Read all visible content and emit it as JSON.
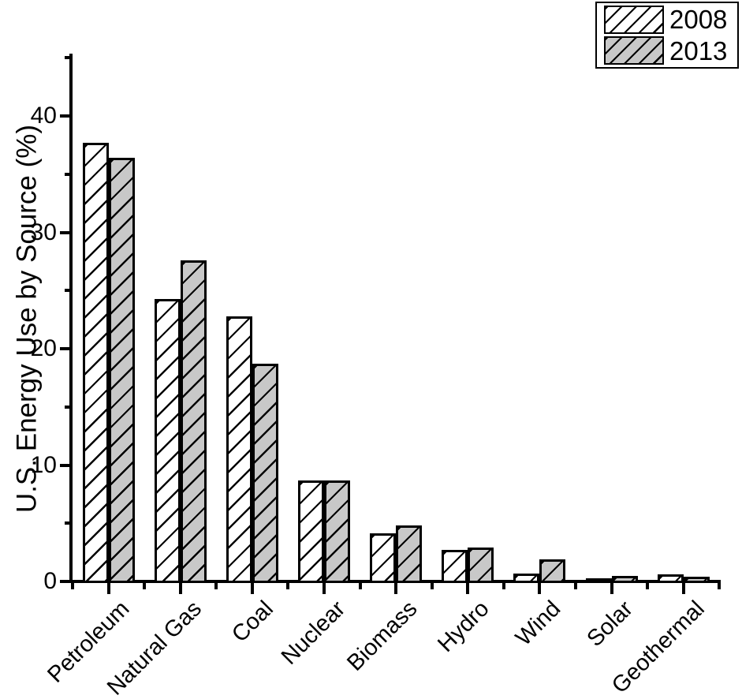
{
  "chart_data": {
    "type": "bar",
    "title": "",
    "xlabel": "",
    "ylabel": "U.S. Energy Use by Source (%)",
    "categories": [
      "Petroleum",
      "Natural Gas",
      "Coal",
      "Nuclear",
      "Biomass",
      "Hydro",
      "Wind",
      "Solar",
      "Geothermal"
    ],
    "series": [
      {
        "name": "2008",
        "fill": "#ffffff",
        "hatch": "diagonal-forward",
        "values": [
          37.5,
          24.1,
          22.6,
          8.5,
          3.9,
          2.5,
          0.5,
          0.1,
          0.4
        ]
      },
      {
        "name": "2013",
        "fill": "#c8c8c8",
        "hatch": "diagonal-forward",
        "values": [
          36.2,
          27.4,
          18.5,
          8.5,
          4.6,
          2.7,
          1.7,
          0.3,
          0.2
        ]
      }
    ],
    "ylim": [
      0,
      45.2
    ],
    "yticks_major": [
      0,
      10,
      20,
      30,
      40
    ],
    "yticks_minor": [
      5,
      15,
      25,
      35,
      45
    ],
    "grid": false,
    "legend_position": "top-right",
    "bar_outline_color": "#000000",
    "axis_color": "#000000",
    "background_color": "#ffffff"
  }
}
